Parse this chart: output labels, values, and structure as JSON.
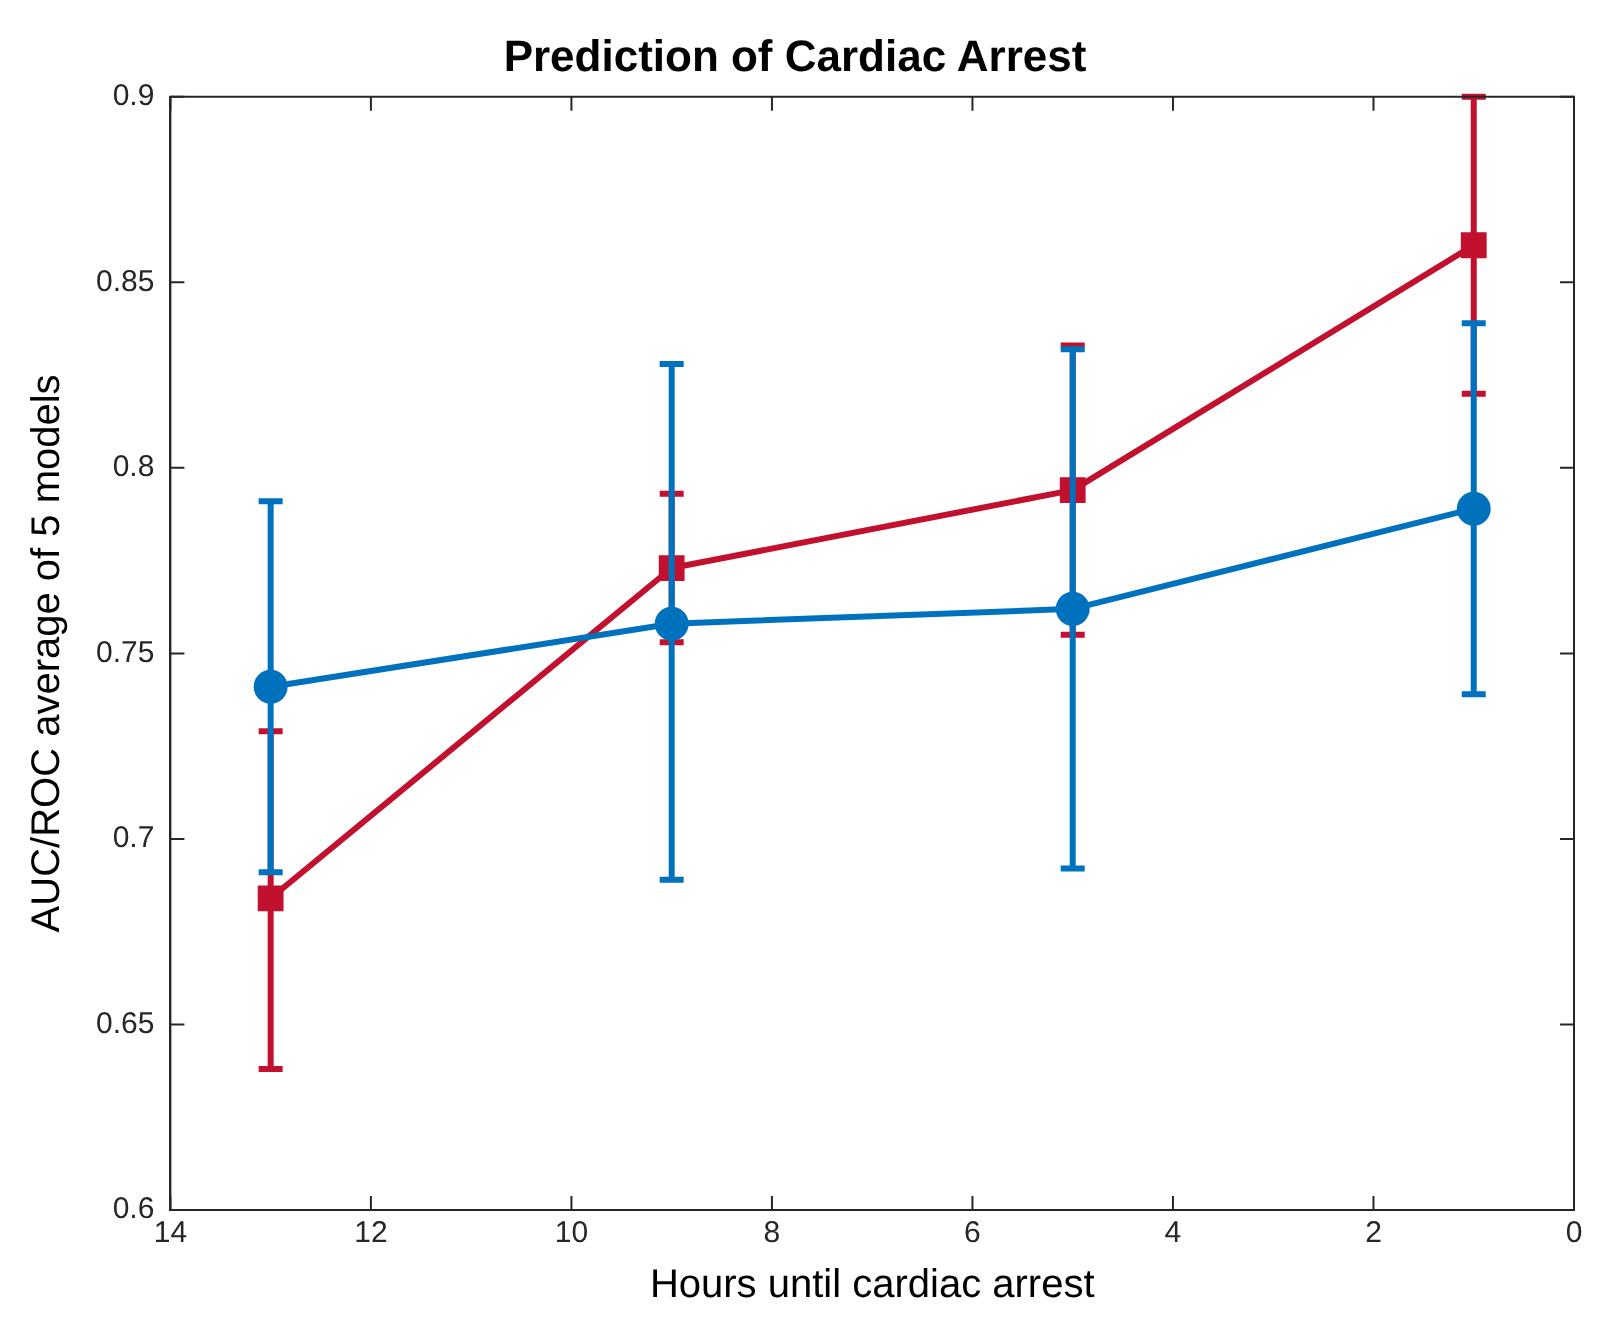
{
  "chart_data": {
    "type": "line",
    "title": "Prediction of Cardiac Arrest",
    "xlabel": "Hours until cardiac arrest",
    "ylabel": "AUC/ROC average of 5 models",
    "x": [
      13,
      9,
      5,
      1
    ],
    "series": [
      {
        "color": "#0072bd",
        "marker": "circle",
        "values": [
          0.741,
          0.758,
          0.762,
          0.789
        ],
        "errors": [
          [
            0.691,
            0.791
          ],
          [
            0.689,
            0.828
          ],
          [
            0.692,
            0.832
          ],
          [
            0.739,
            0.839
          ]
        ]
      },
      {
        "color": "#c1112f",
        "marker": "square",
        "values": [
          0.684,
          0.773,
          0.794,
          0.86
        ],
        "errors": [
          [
            0.638,
            0.729
          ],
          [
            0.753,
            0.793
          ],
          [
            0.755,
            0.833
          ],
          [
            0.82,
            0.9
          ]
        ]
      }
    ],
    "xlim": [
      14,
      0
    ],
    "xticks": [
      0,
      2,
      4,
      6,
      8,
      10,
      12,
      14
    ],
    "ylim": [
      0.6,
      0.9
    ],
    "yticks": [
      0.6,
      0.65,
      0.7,
      0.75,
      0.8,
      0.85,
      0.9
    ],
    "grid": false,
    "legend": false
  }
}
